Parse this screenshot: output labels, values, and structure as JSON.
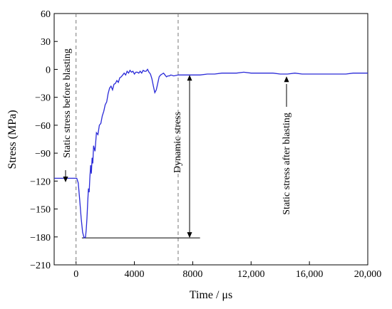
{
  "chart_data": {
    "type": "line",
    "xlabel": "Time / μs",
    "ylabel": "Stress (MPa)",
    "xlim": [
      -1500,
      20000
    ],
    "ylim": [
      -210,
      60
    ],
    "x_ticks": [
      0,
      4000,
      8000,
      12000,
      16000,
      20000
    ],
    "x_tick_labels": [
      "0",
      "4000",
      "8000",
      "12,000",
      "16,000",
      "20,000"
    ],
    "y_ticks": [
      60,
      30,
      0,
      -30,
      -60,
      -90,
      -120,
      -150,
      -180,
      -210
    ],
    "y_tick_labels": [
      "60",
      "30",
      "0",
      "−30",
      "−60",
      "−90",
      "−120",
      "−150",
      "−180",
      "−210"
    ],
    "grid": false,
    "line_color": "#2a2ad8",
    "series": [
      {
        "x": [
          -1500,
          -200,
          50,
          150,
          250,
          350,
          450,
          550,
          650,
          700,
          750,
          800,
          850,
          900,
          950,
          1000,
          1050,
          1100,
          1150,
          1200,
          1300,
          1400,
          1500,
          1600,
          1700,
          1800,
          1900,
          2000,
          2100,
          2200,
          2300,
          2400,
          2500,
          2600,
          2700,
          2800,
          2900,
          3000,
          3100,
          3200,
          3300,
          3400,
          3500,
          3600,
          3700,
          3800,
          3900,
          4000,
          4100,
          4200,
          4300,
          4400,
          4500,
          4600,
          4700,
          4800,
          4900,
          5000,
          5100,
          5200,
          5300,
          5400,
          5500,
          5600,
          5700,
          5800,
          5900,
          6000,
          6100,
          6200,
          6300,
          6400,
          6500,
          6700,
          7000,
          7500,
          8000,
          8500,
          9000,
          9500,
          10000,
          10500,
          11000,
          11500,
          12000,
          12500,
          13000,
          13500,
          14000,
          14500,
          15000,
          15500,
          16000,
          16500,
          17000,
          17500,
          18000,
          18500,
          19000,
          19500,
          20000
        ],
        "y": [
          -117,
          -117,
          -117,
          -122,
          -140,
          -160,
          -175,
          -181,
          -180,
          -172,
          -160,
          -142,
          -128,
          -132,
          -116,
          -103,
          -112,
          -95,
          -101,
          -82,
          -88,
          -68,
          -70,
          -60,
          -58,
          -50,
          -45,
          -38,
          -35,
          -26,
          -20,
          -18,
          -22,
          -16,
          -15,
          -12,
          -14,
          -9,
          -8,
          -6,
          -4,
          -6,
          -2,
          -4,
          -1,
          -3,
          -2,
          -5,
          -3,
          -3,
          -4,
          -2,
          -4,
          -1,
          -2,
          -2,
          0,
          -3,
          -5,
          -10,
          -18,
          -25,
          -22,
          -15,
          -8,
          -6,
          -5,
          -4,
          -6,
          -8,
          -7,
          -7,
          -6,
          -7,
          -6,
          -6,
          -6,
          -6,
          -5,
          -5,
          -4,
          -4,
          -4,
          -3,
          -4,
          -4,
          -4,
          -4,
          -5,
          -5,
          -4,
          -5,
          -5,
          -5,
          -5,
          -5,
          -5,
          -5,
          -4,
          -4,
          -4
        ]
      }
    ],
    "annotations": {
      "static_before": "Static stress before blasting",
      "dynamic": "Dynamic stress",
      "static_after": "Static stress after blasting"
    },
    "reference_lines": {
      "dashed_vertical_x": [
        0,
        7000
      ],
      "baseline_y": -181,
      "baseline_x_range": [
        400,
        8500
      ]
    }
  }
}
